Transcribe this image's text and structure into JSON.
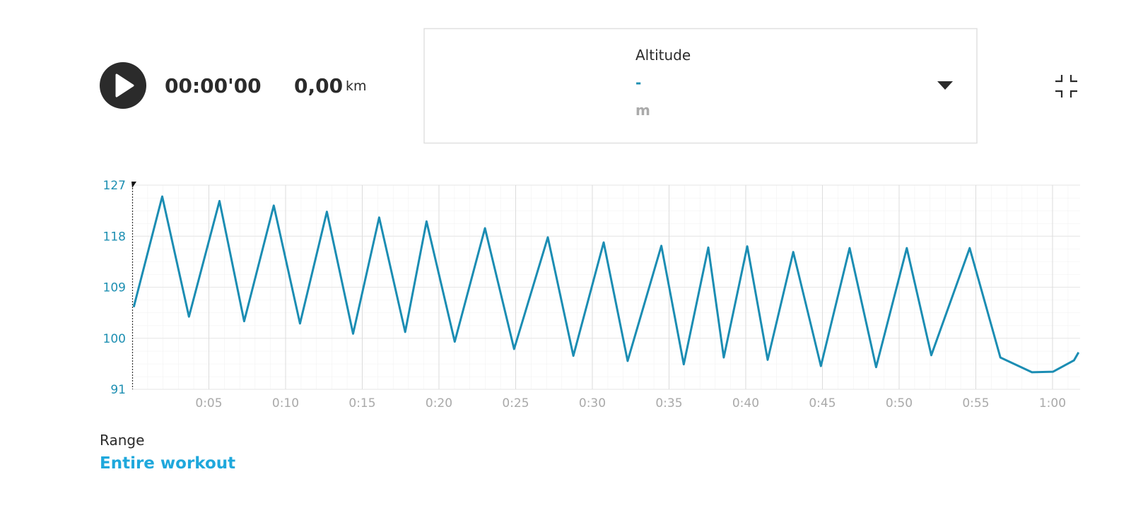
{
  "player": {
    "time": "00:00'00",
    "distance": "0,00",
    "distance_unit": "km"
  },
  "metric_selector": {
    "label": "Altitude",
    "value": "-",
    "unit": "m"
  },
  "chart_data": {
    "type": "line",
    "x": [
      0.1,
      1.96,
      3.7,
      5.69,
      7.3,
      9.23,
      10.94,
      12.69,
      14.4,
      16.1,
      17.8,
      19.19,
      21.03,
      23.0,
      24.9,
      27.1,
      28.76,
      30.74,
      32.3,
      34.5,
      35.96,
      37.56,
      38.57,
      40.1,
      41.43,
      43.1,
      44.9,
      46.77,
      48.5,
      50.5,
      52.1,
      54.6,
      56.6,
      58.66,
      60.04,
      61.4,
      61.7
    ],
    "series": [
      {
        "color": "#1b8db3",
        "values": [
          105.5,
          125.0,
          103.8,
          124.2,
          103.0,
          123.4,
          102.6,
          122.3,
          100.8,
          121.3,
          101.1,
          120.6,
          99.4,
          119.4,
          98.1,
          117.8,
          96.9,
          116.9,
          96.0,
          116.3,
          95.4,
          116.0,
          96.6,
          116.2,
          96.2,
          115.2,
          95.1,
          115.9,
          94.9,
          115.9,
          97.0,
          115.9,
          96.6,
          94.0,
          94.1,
          96.1,
          97.5
        ]
      }
    ],
    "xlim": [
      0,
      61.8
    ],
    "xticks": [
      {
        "value": 5,
        "label": "0:05"
      },
      {
        "value": 10,
        "label": "0:10"
      },
      {
        "value": 15,
        "label": "0:15"
      },
      {
        "value": 20,
        "label": "0:20"
      },
      {
        "value": 25,
        "label": "0:25"
      },
      {
        "value": 30,
        "label": "0:30"
      },
      {
        "value": 35,
        "label": "0:35"
      },
      {
        "value": 40,
        "label": "0:40"
      },
      {
        "value": 45,
        "label": "0:45"
      },
      {
        "value": 50,
        "label": "0:50"
      },
      {
        "value": 55,
        "label": "0:55"
      },
      {
        "value": 60,
        "label": "1:00"
      }
    ],
    "ylim": [
      91,
      127
    ],
    "yticks": [
      91,
      100,
      109,
      118,
      127
    ],
    "grid": true
  },
  "range": {
    "label": "Range",
    "value": "Entire workout"
  }
}
